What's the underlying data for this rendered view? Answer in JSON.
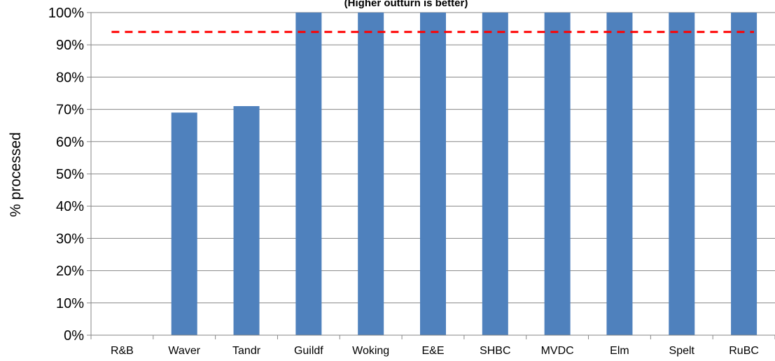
{
  "chart_data": {
    "type": "bar",
    "subtitle": "(Higher outturn is better)",
    "ylabel": "% processed",
    "xlabel": "",
    "categories": [
      "R&B",
      "Waver",
      "Tandr",
      "Guildf",
      "Woking",
      "E&E",
      "SHBC",
      "MVDC",
      "Elm",
      "Spelt",
      "RuBC"
    ],
    "values": [
      0,
      69,
      71,
      100,
      100,
      100,
      100,
      100,
      100,
      100,
      100
    ],
    "ylim": [
      0,
      100
    ],
    "yticks": [
      "0%",
      "10%",
      "20%",
      "30%",
      "40%",
      "50%",
      "60%",
      "70%",
      "80%",
      "90%",
      "100%"
    ],
    "target_line": 94,
    "grid": true,
    "legend": "none",
    "colors": {
      "bar": "#4f81bd",
      "target": "#ff0000",
      "grid": "#868686"
    }
  }
}
